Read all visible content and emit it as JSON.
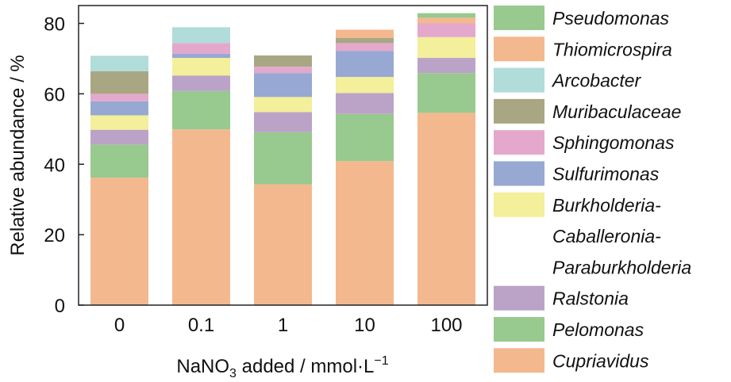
{
  "chart_data": {
    "type": "bar",
    "stacked": true,
    "title": "",
    "xlabel": "NaNO3 added / mmol·L−1",
    "xlabel_parts": {
      "a": "NaNO",
      "sub": "3",
      "b": " added / mmol·L",
      "sup": "−1"
    },
    "ylabel": "Relative abundance / %",
    "ylim": [
      0,
      85
    ],
    "yticks": [
      "0",
      "20",
      "40",
      "60",
      "80"
    ],
    "ytick_values": [
      0,
      20,
      40,
      60,
      80
    ],
    "categories": [
      "0",
      "0.1",
      "1",
      "10",
      "100"
    ],
    "legend_position": "right",
    "series": [
      {
        "name": "Cupriavidus",
        "color": "#f4b88e",
        "values": [
          36.2,
          49.9,
          34.3,
          40.9,
          54.6
        ]
      },
      {
        "name": "Pelomonas",
        "color": "#98c98e",
        "values": [
          9.4,
          10.9,
          14.8,
          13.4,
          11.3
        ]
      },
      {
        "name": "Ralstonia",
        "color": "#bba3c8",
        "values": [
          4.2,
          4.4,
          5.7,
          5.9,
          4.3
        ]
      },
      {
        "name": "Burkholderia-Caballeronia-Paraburkholderia",
        "color": "#f3ef9a",
        "values": [
          4.1,
          5.0,
          4.3,
          4.6,
          5.9
        ]
      },
      {
        "name": "Sulfurimonas",
        "color": "#97a8d2",
        "values": [
          4.0,
          1.2,
          6.8,
          7.4,
          0
        ]
      },
      {
        "name": "Sphingomonas",
        "color": "#e3a8cc",
        "values": [
          2.1,
          3.0,
          1.8,
          2.2,
          3.9
        ]
      },
      {
        "name": "Muribaculaceae",
        "color": "#a9a783",
        "values": [
          6.4,
          0,
          3.2,
          1.5,
          0
        ]
      },
      {
        "name": "Arcobacter",
        "color": "#b0dcd9",
        "values": [
          4.4,
          4.5,
          0,
          0,
          0
        ]
      },
      {
        "name": "Thiomicrospira",
        "color": "#f4b88e",
        "values": [
          0,
          0,
          0,
          2.3,
          1.6
        ]
      },
      {
        "name": "Pseudomonas",
        "color": "#98c98e",
        "values": [
          0,
          0,
          0,
          0,
          1.3
        ]
      }
    ],
    "legend": [
      {
        "lines": [
          "Pseudomonas"
        ],
        "color": "#98c98e"
      },
      {
        "lines": [
          "Thiomicrospira"
        ],
        "color": "#f4b88e"
      },
      {
        "lines": [
          "Arcobacter"
        ],
        "color": "#b0dcd9"
      },
      {
        "lines": [
          "Muribaculaceae"
        ],
        "color": "#a9a783"
      },
      {
        "lines": [
          "Sphingomonas"
        ],
        "color": "#e3a8cc"
      },
      {
        "lines": [
          "Sulfurimonas"
        ],
        "color": "#97a8d2"
      },
      {
        "lines": [
          "Burkholderia-",
          "Caballeronia-",
          "Paraburkholderia"
        ],
        "color": "#f3ef9a"
      },
      {
        "lines": [
          "Ralstonia"
        ],
        "color": "#bba3c8"
      },
      {
        "lines": [
          "Pelomonas"
        ],
        "color": "#98c98e"
      },
      {
        "lines": [
          "Cupriavidus"
        ],
        "color": "#f4b88e"
      }
    ]
  }
}
